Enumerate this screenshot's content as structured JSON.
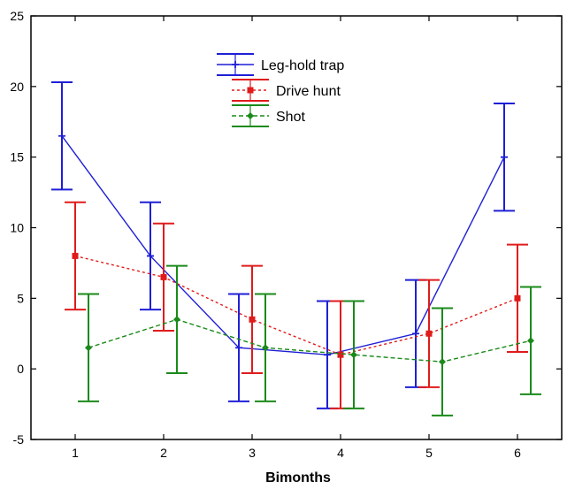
{
  "chart_data": {
    "type": "line",
    "title": "",
    "xlabel": "Bimonths",
    "ylabel": "",
    "x": [
      1,
      2,
      3,
      4,
      5,
      6
    ],
    "xlim": [
      0.5,
      6.5
    ],
    "ylim": [
      -5,
      25
    ],
    "yticks": [
      -5,
      0,
      5,
      10,
      15,
      20,
      25
    ],
    "grid": false,
    "legend_position": "top-center",
    "series": [
      {
        "name": "Leg-hold trap",
        "color": "#1f1fd6",
        "line_style": "solid",
        "marker": "plus",
        "values": [
          16.5,
          8.0,
          1.5,
          1.0,
          2.5,
          15.0
        ],
        "error_low": [
          12.7,
          4.2,
          -2.3,
          -2.8,
          -1.3,
          11.2
        ],
        "error_high": [
          20.3,
          11.8,
          5.3,
          4.8,
          6.3,
          18.8
        ]
      },
      {
        "name": "Drive hunt",
        "color": "#e01b1b",
        "line_style": "dotted",
        "marker": "square",
        "values": [
          8.0,
          6.5,
          3.5,
          1.0,
          2.5,
          5.0
        ],
        "error_low": [
          4.2,
          2.7,
          -0.3,
          -2.8,
          -1.3,
          1.2
        ],
        "error_high": [
          11.8,
          10.3,
          7.3,
          4.8,
          6.3,
          8.8
        ]
      },
      {
        "name": "Shot",
        "color": "#1a8a1a",
        "line_style": "dashed",
        "marker": "diamond",
        "values": [
          1.5,
          3.5,
          1.5,
          1.0,
          0.5,
          2.0
        ],
        "error_low": [
          -2.3,
          -0.3,
          -2.3,
          -2.8,
          -3.3,
          -1.8
        ],
        "error_high": [
          5.3,
          7.3,
          5.3,
          4.8,
          4.3,
          5.8
        ]
      }
    ]
  }
}
